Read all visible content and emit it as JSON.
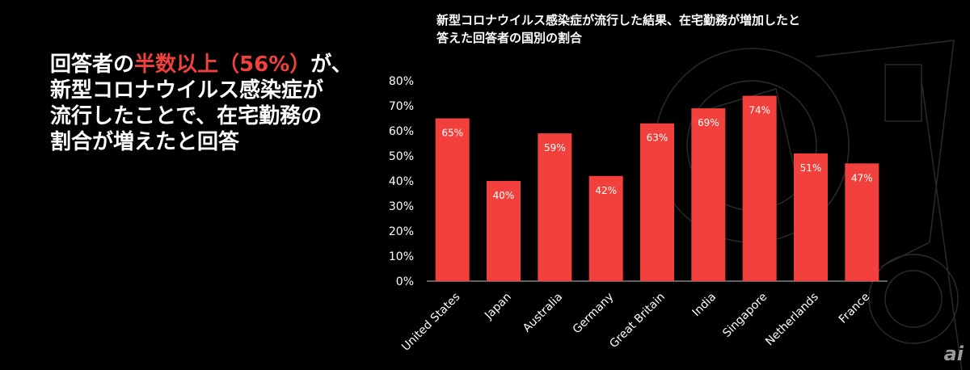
{
  "headline": {
    "prefix": "回答者の",
    "accent": "半数以上（56%）",
    "suffix": "が、",
    "line2": "新型コロナウイルス感染症が",
    "line3": "流行したことで、在宅勤務の",
    "line4": "割合が増えたと回答"
  },
  "colors": {
    "bar": "#f2413c",
    "background": "#000000",
    "text": "#ffffff",
    "accent": "#f2413c"
  },
  "logo_icon": "logo-icon",
  "chart_data": {
    "type": "bar",
    "title_lines": [
      "新型コロナウイルス感染症が流行した結果、在宅勤務が増加したと",
      "答えた回答者の国別の割合"
    ],
    "categories": [
      "United States",
      "Japan",
      "Australia",
      "Germany",
      "Great Britain",
      "India",
      "Singapore",
      "Netherlands",
      "France"
    ],
    "values": [
      65,
      40,
      59,
      42,
      63,
      69,
      74,
      51,
      47
    ],
    "value_labels": [
      "65%",
      "40%",
      "59%",
      "42%",
      "63%",
      "69%",
      "74%",
      "51%",
      "47%"
    ],
    "y_ticks": [
      "0%",
      "10%",
      "20%",
      "30%",
      "40%",
      "50%",
      "60%",
      "70%",
      "80%"
    ],
    "ylim": [
      0,
      80
    ],
    "grid": false,
    "legend": "none"
  }
}
